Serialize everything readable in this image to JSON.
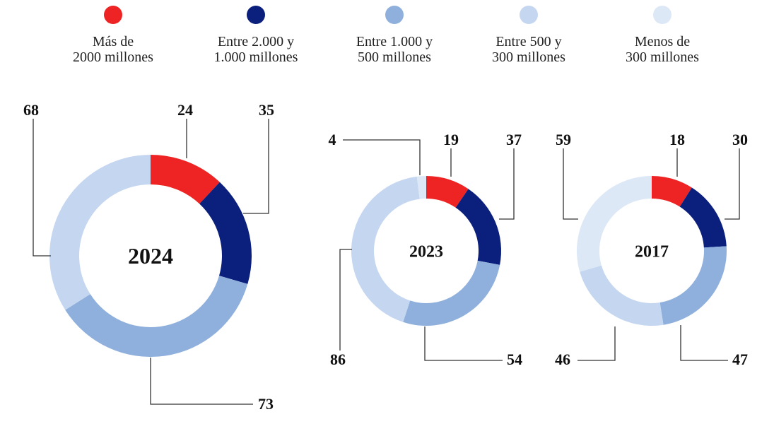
{
  "legend": [
    {
      "label": "Más de\n2000 millones",
      "color": "#ee2424"
    },
    {
      "label": "Entre 2.000 y\n1.000 millones",
      "color": "#0b1f7c"
    },
    {
      "label": "Entre 1.000 y\n500 millones",
      "color": "#8fb0dc"
    },
    {
      "label": "Entre 500 y\n300 millones",
      "color": "#c4d6f0"
    },
    {
      "label": "Menos de\n300 millones",
      "color": "#dde8f7"
    }
  ],
  "chart_data": [
    {
      "type": "pie",
      "title": "2024",
      "categories": [
        "Más de 2000 millones",
        "Entre 2.000 y 1.000 millones",
        "Entre 1.000 y 500 millones",
        "Entre 500 y 300 millones"
      ],
      "values": [
        24,
        35,
        73,
        68
      ],
      "colors": [
        "#ee2424",
        "#0b1f7c",
        "#8fb0dc",
        "#c4d6f0"
      ]
    },
    {
      "type": "pie",
      "title": "2023",
      "categories": [
        "Más de 2000 millones",
        "Entre 2.000 y 1.000 millones",
        "Entre 1.000 y 500 millones",
        "Entre 500 y 300 millones",
        "Menos de 300 millones"
      ],
      "values": [
        19,
        37,
        54,
        86,
        4
      ],
      "colors": [
        "#ee2424",
        "#0b1f7c",
        "#8fb0dc",
        "#c4d6f0",
        "#dde8f7"
      ]
    },
    {
      "type": "pie",
      "title": "2017",
      "categories": [
        "Más de 2000 millones",
        "Entre 2.000 y 1.000 millones",
        "Entre 1.000 y 500 millones",
        "Entre 500 y 300 millones",
        "Menos de 300 millones"
      ],
      "values": [
        18,
        30,
        47,
        46,
        59
      ],
      "colors": [
        "#ee2424",
        "#0b1f7c",
        "#8fb0dc",
        "#c4d6f0",
        "#dde8f7"
      ]
    }
  ]
}
